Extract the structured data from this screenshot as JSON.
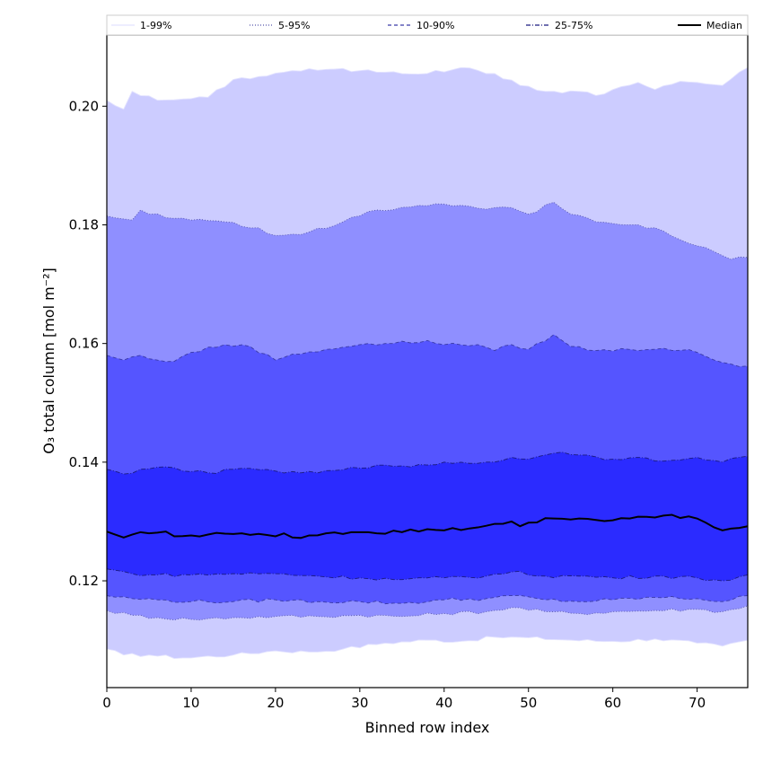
{
  "chart_data": {
    "type": "area",
    "xlabel": "Binned row index",
    "ylabel": "O₃ total column [mol m⁻²]",
    "xlim": [
      0,
      76
    ],
    "ylim": [
      0.102,
      0.212
    ],
    "x_ticks": [
      0,
      10,
      20,
      30,
      40,
      50,
      60,
      70
    ],
    "y_ticks": [
      0.12,
      0.14,
      0.16,
      0.18,
      0.2
    ],
    "x_tick_labels": [
      "0",
      "10",
      "20",
      "30",
      "40",
      "50",
      "60",
      "70"
    ],
    "y_tick_labels": [
      "0.12",
      "0.14",
      "0.16",
      "0.18",
      "0.20"
    ],
    "grid": false,
    "legend_position": "top",
    "x_step": 1,
    "bands": [
      {
        "name": "1-99%",
        "color": "#ccccff",
        "edge_color": "#e2e2ff",
        "dash": "",
        "lower_anchors": [
          [
            0,
            0.1085
          ],
          [
            2,
            0.1075
          ],
          [
            5,
            0.1075
          ],
          [
            9,
            0.107
          ],
          [
            15,
            0.1075
          ],
          [
            20,
            0.1082
          ],
          [
            24,
            0.108
          ],
          [
            28,
            0.1085
          ],
          [
            33,
            0.1095
          ],
          [
            38,
            0.11
          ],
          [
            42,
            0.1098
          ],
          [
            46,
            0.1105
          ],
          [
            50,
            0.1104
          ],
          [
            55,
            0.11
          ],
          [
            60,
            0.1098
          ],
          [
            65,
            0.1102
          ],
          [
            70,
            0.1095
          ],
          [
            73,
            0.109
          ],
          [
            76,
            0.11
          ]
        ],
        "upper_anchors": [
          [
            0,
            0.201
          ],
          [
            2,
            0.1995
          ],
          [
            3,
            0.2025
          ],
          [
            6,
            0.201
          ],
          [
            9,
            0.2012
          ],
          [
            12,
            0.2015
          ],
          [
            15,
            0.2045
          ],
          [
            18,
            0.205
          ],
          [
            22,
            0.206
          ],
          [
            26,
            0.2062
          ],
          [
            30,
            0.206
          ],
          [
            34,
            0.2058
          ],
          [
            38,
            0.2055
          ],
          [
            42,
            0.2065
          ],
          [
            46,
            0.2055
          ],
          [
            49,
            0.2035
          ],
          [
            52,
            0.2025
          ],
          [
            56,
            0.2025
          ],
          [
            58,
            0.2018
          ],
          [
            60,
            0.2028
          ],
          [
            63,
            0.204
          ],
          [
            65,
            0.2028
          ],
          [
            68,
            0.2042
          ],
          [
            70,
            0.204
          ],
          [
            73,
            0.2035
          ],
          [
            76,
            0.2065
          ]
        ]
      },
      {
        "name": "5-95%",
        "color": "#8f8fff",
        "edge_color": "#5555aa",
        "dash": "1,2",
        "lower_anchors": [
          [
            0,
            0.115
          ],
          [
            3,
            0.1142
          ],
          [
            6,
            0.1138
          ],
          [
            10,
            0.1135
          ],
          [
            15,
            0.1138
          ],
          [
            20,
            0.114
          ],
          [
            25,
            0.114
          ],
          [
            30,
            0.1142
          ],
          [
            35,
            0.114
          ],
          [
            40,
            0.1145
          ],
          [
            45,
            0.1148
          ],
          [
            48,
            0.1155
          ],
          [
            52,
            0.1148
          ],
          [
            56,
            0.1145
          ],
          [
            60,
            0.1148
          ],
          [
            65,
            0.115
          ],
          [
            70,
            0.1152
          ],
          [
            73,
            0.1148
          ],
          [
            76,
            0.1158
          ]
        ],
        "upper_anchors": [
          [
            0,
            0.1815
          ],
          [
            3,
            0.1808
          ],
          [
            4,
            0.1825
          ],
          [
            7,
            0.1812
          ],
          [
            10,
            0.1808
          ],
          [
            14,
            0.1805
          ],
          [
            18,
            0.1795
          ],
          [
            20,
            0.1782
          ],
          [
            24,
            0.1788
          ],
          [
            28,
            0.1805
          ],
          [
            32,
            0.1825
          ],
          [
            36,
            0.183
          ],
          [
            40,
            0.1835
          ],
          [
            44,
            0.1828
          ],
          [
            47,
            0.183
          ],
          [
            50,
            0.1818
          ],
          [
            53,
            0.1838
          ],
          [
            55,
            0.1818
          ],
          [
            58,
            0.1805
          ],
          [
            62,
            0.18
          ],
          [
            65,
            0.1795
          ],
          [
            68,
            0.1775
          ],
          [
            72,
            0.1755
          ],
          [
            74,
            0.1742
          ],
          [
            76,
            0.1745
          ]
        ]
      },
      {
        "name": "10-90%",
        "color": "#5555ff",
        "edge_color": "#3a3aa8",
        "dash": "4,3",
        "lower_anchors": [
          [
            0,
            0.1175
          ],
          [
            3,
            0.117
          ],
          [
            6,
            0.1168
          ],
          [
            10,
            0.1165
          ],
          [
            15,
            0.1165
          ],
          [
            20,
            0.1168
          ],
          [
            25,
            0.1165
          ],
          [
            30,
            0.1165
          ],
          [
            35,
            0.1162
          ],
          [
            40,
            0.1168
          ],
          [
            45,
            0.117
          ],
          [
            48,
            0.1175
          ],
          [
            52,
            0.1168
          ],
          [
            56,
            0.1165
          ],
          [
            60,
            0.1168
          ],
          [
            65,
            0.1172
          ],
          [
            70,
            0.117
          ],
          [
            73,
            0.1165
          ],
          [
            76,
            0.1175
          ]
        ],
        "upper_anchors": [
          [
            0,
            0.158
          ],
          [
            2,
            0.1572
          ],
          [
            4,
            0.158
          ],
          [
            6,
            0.1572
          ],
          [
            8,
            0.157
          ],
          [
            10,
            0.1585
          ],
          [
            14,
            0.1598
          ],
          [
            17,
            0.1595
          ],
          [
            20,
            0.1572
          ],
          [
            22,
            0.1582
          ],
          [
            26,
            0.159
          ],
          [
            30,
            0.1598
          ],
          [
            34,
            0.16
          ],
          [
            38,
            0.1605
          ],
          [
            40,
            0.1598
          ],
          [
            44,
            0.1598
          ],
          [
            46,
            0.1588
          ],
          [
            48,
            0.1598
          ],
          [
            50,
            0.159
          ],
          [
            53,
            0.1615
          ],
          [
            55,
            0.1595
          ],
          [
            58,
            0.1588
          ],
          [
            62,
            0.159
          ],
          [
            66,
            0.1592
          ],
          [
            70,
            0.1585
          ],
          [
            73,
            0.1568
          ],
          [
            76,
            0.1562
          ]
        ]
      },
      {
        "name": "25-75%",
        "color": "#2b2bff",
        "edge_color": "#1a1a80",
        "dash": "5,2,1,2",
        "lower_anchors": [
          [
            0,
            0.122
          ],
          [
            3,
            0.1212
          ],
          [
            6,
            0.121
          ],
          [
            10,
            0.121
          ],
          [
            15,
            0.1212
          ],
          [
            20,
            0.1212
          ],
          [
            25,
            0.1208
          ],
          [
            30,
            0.1205
          ],
          [
            35,
            0.1202
          ],
          [
            40,
            0.1205
          ],
          [
            45,
            0.1208
          ],
          [
            48,
            0.1215
          ],
          [
            52,
            0.1208
          ],
          [
            56,
            0.1208
          ],
          [
            60,
            0.1205
          ],
          [
            65,
            0.1208
          ],
          [
            70,
            0.1205
          ],
          [
            73,
            0.12
          ],
          [
            76,
            0.121
          ]
        ],
        "upper_anchors": [
          [
            0,
            0.1388
          ],
          [
            2,
            0.138
          ],
          [
            4,
            0.1388
          ],
          [
            7,
            0.1392
          ],
          [
            9,
            0.1385
          ],
          [
            12,
            0.1382
          ],
          [
            15,
            0.1388
          ],
          [
            20,
            0.1385
          ],
          [
            25,
            0.1382
          ],
          [
            30,
            0.139
          ],
          [
            33,
            0.1395
          ],
          [
            36,
            0.1392
          ],
          [
            40,
            0.14
          ],
          [
            45,
            0.14
          ],
          [
            48,
            0.1408
          ],
          [
            50,
            0.1405
          ],
          [
            53,
            0.1415
          ],
          [
            56,
            0.1412
          ],
          [
            60,
            0.1405
          ],
          [
            63,
            0.1408
          ],
          [
            65,
            0.1402
          ],
          [
            70,
            0.1408
          ],
          [
            73,
            0.14
          ],
          [
            76,
            0.141
          ]
        ]
      }
    ],
    "median": {
      "name": "Median",
      "color": "#000000",
      "anchors": [
        [
          0,
          0.1283
        ],
        [
          2,
          0.1273
        ],
        [
          4,
          0.1282
        ],
        [
          7,
          0.1283
        ],
        [
          8,
          0.1275
        ],
        [
          12,
          0.1278
        ],
        [
          16,
          0.128
        ],
        [
          20,
          0.1275
        ],
        [
          21,
          0.128
        ],
        [
          22,
          0.1273
        ],
        [
          26,
          0.128
        ],
        [
          30,
          0.1282
        ],
        [
          35,
          0.1282
        ],
        [
          38,
          0.1287
        ],
        [
          40,
          0.1285
        ],
        [
          44,
          0.129
        ],
        [
          48,
          0.13
        ],
        [
          49,
          0.1292
        ],
        [
          50,
          0.1298
        ],
        [
          53,
          0.1305
        ],
        [
          56,
          0.1305
        ],
        [
          60,
          0.1302
        ],
        [
          63,
          0.1308
        ],
        [
          66,
          0.131
        ],
        [
          70,
          0.1305
        ],
        [
          73,
          0.1285
        ],
        [
          76,
          0.1292
        ]
      ]
    }
  }
}
